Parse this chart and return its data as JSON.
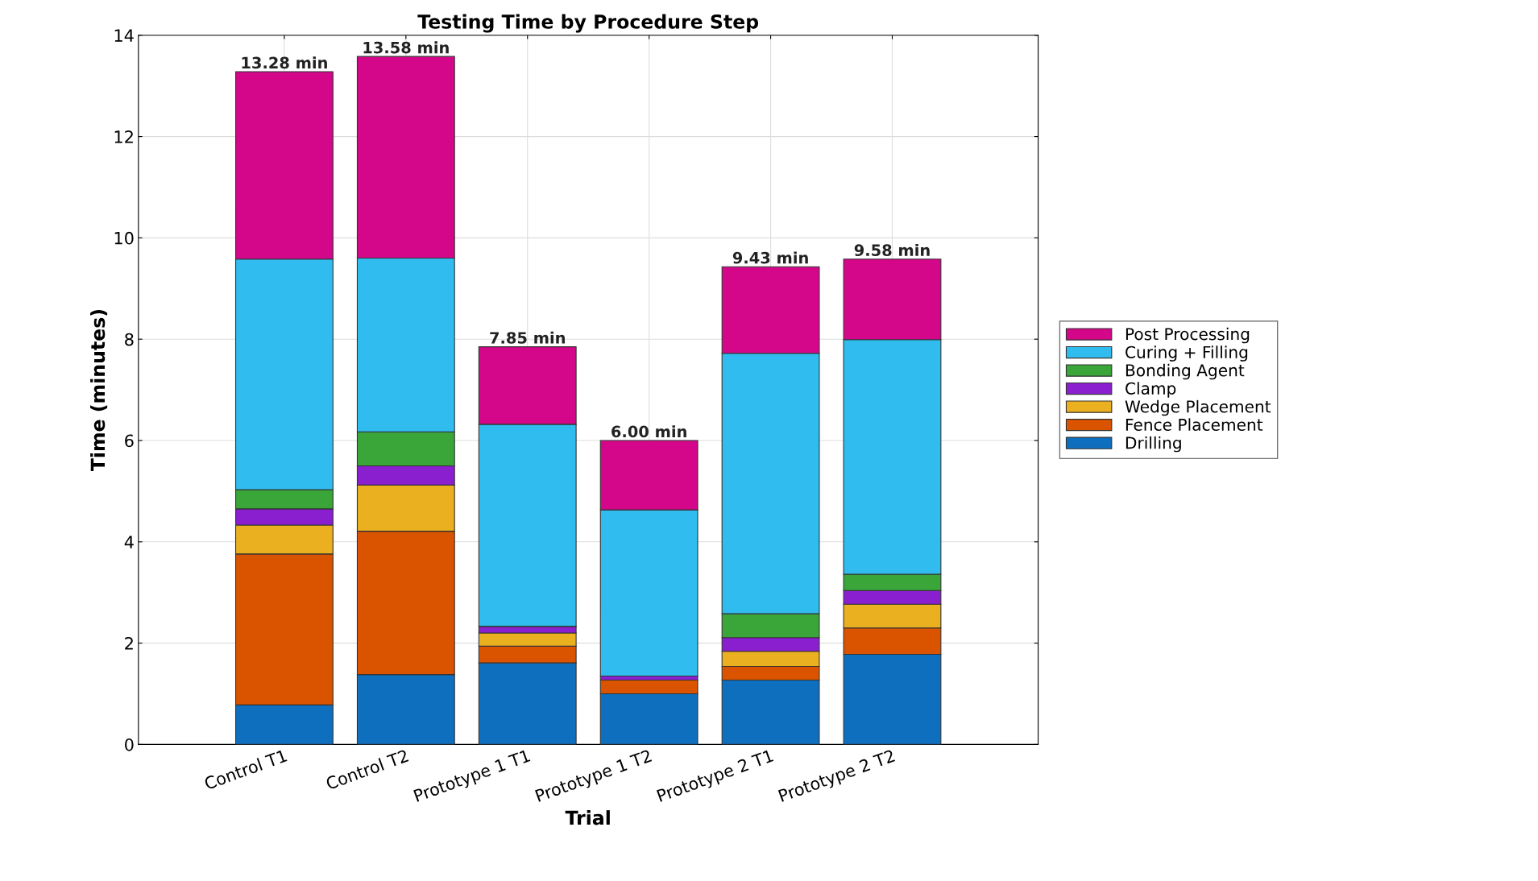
{
  "chart_data": {
    "type": "bar",
    "stacked": true,
    "title": "Testing Time by Procedure Step",
    "xlabel": "Trial",
    "ylabel": "Time (minutes)",
    "categories": [
      "Control T1",
      "Control T2",
      "Prototype 1 T1",
      "Prototype 1 T2",
      "Prototype 2 T1",
      "Prototype 2 T2"
    ],
    "series": [
      {
        "name": "Drilling",
        "color": "#0f6fbf",
        "values": [
          0.78,
          1.38,
          1.61,
          1.0,
          1.27,
          1.78
        ]
      },
      {
        "name": "Fence Placement",
        "color": "#da5400",
        "values": [
          2.98,
          2.83,
          0.33,
          0.27,
          0.27,
          0.52
        ]
      },
      {
        "name": "Wedge Placement",
        "color": "#ebb020",
        "values": [
          0.57,
          0.91,
          0.26,
          0,
          0.3,
          0.47
        ]
      },
      {
        "name": "Clamp",
        "color": "#8a1fd0",
        "values": [
          0.32,
          0.38,
          0.13,
          0.08,
          0.27,
          0.27
        ]
      },
      {
        "name": "Bonding Agent",
        "color": "#3aa63a",
        "values": [
          0.38,
          0.67,
          0,
          0,
          0.47,
          0.32
        ]
      },
      {
        "name": "Curing + Filling",
        "color": "#30bcee",
        "values": [
          4.55,
          3.43,
          3.99,
          3.28,
          5.14,
          4.63
        ]
      },
      {
        "name": "Post Processing",
        "color": "#d4068a",
        "values": [
          3.7,
          3.98,
          1.53,
          1.37,
          1.71,
          1.59
        ]
      }
    ],
    "totals": [
      "13.28 min",
      "13.58 min",
      "7.85 min",
      "6.00 min",
      "9.43 min",
      "9.58 min"
    ],
    "ylim": [
      0,
      14
    ],
    "yticks": [
      0,
      2,
      4,
      6,
      8,
      10,
      12,
      14
    ],
    "grid": true,
    "legend": "right"
  }
}
